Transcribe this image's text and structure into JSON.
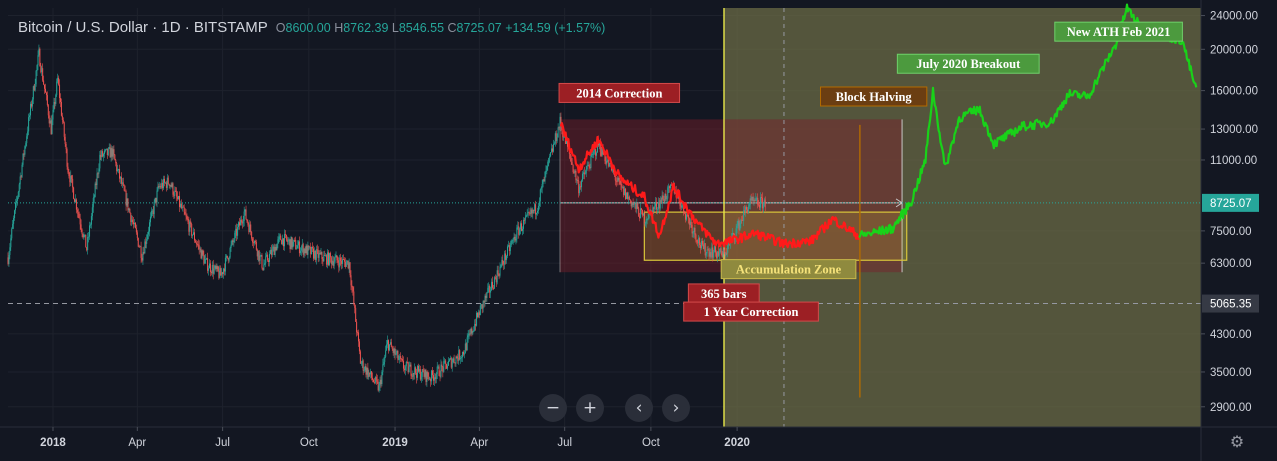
{
  "header": {
    "symbol": "Bitcoin / U.S. Dollar · 1D · BITSTAMP",
    "open_label": "O",
    "open": "8600.00",
    "high_label": "H",
    "high": "8762.39",
    "low_label": "L",
    "low": "8546.55",
    "close_label": "C",
    "close": "8725.07",
    "change": "+134.59 (+1.57%)"
  },
  "controls": {
    "zoom_out": "−",
    "zoom_in": "+",
    "scroll_left": "‹",
    "scroll_right": "›",
    "settings_icon": "gear-icon"
  },
  "colors": {
    "background": "#131722",
    "up": "#26a69a",
    "down": "#ef5350",
    "fractal_red": "#ff1a1a",
    "fractal_green": "#19d219",
    "halving_line": "#b36b00",
    "current_line": "#e8e84a",
    "accumulation_box": "#d9c63a",
    "future_region": "#6b6b45",
    "last_price_tag": "#26a69a"
  },
  "chart_data": {
    "type": "candlestick",
    "symbol": "BTCUSD",
    "timeframe": "1D",
    "y_scale": "log",
    "ylim": [
      2600,
      25000
    ],
    "xlim": [
      "2017-11-14",
      "2021-05-10"
    ],
    "y_ticks": [
      24000,
      20000,
      16000,
      13000,
      11000,
      7500,
      6300,
      4300,
      3500,
      2900
    ],
    "y_tick_labels": [
      "24000.00",
      "20000.00",
      "16000.00",
      "13000.00",
      "11000.00",
      "7500.00",
      "6300.00",
      "4300.00",
      "3500.00",
      "2900.00"
    ],
    "x_ticks": [
      "2018-01-01",
      "2018-04-01",
      "2018-07-01",
      "2018-10-01",
      "2019-01-01",
      "2019-04-01",
      "2019-07-01",
      "2019-10-01",
      "2020-01-01"
    ],
    "x_tick_labels": [
      "2018",
      "Apr",
      "Jul",
      "Oct",
      "2019",
      "Apr",
      "Jul",
      "Oct",
      "2020"
    ],
    "bold_x_ticks": [
      "2018",
      "2019",
      "2020"
    ],
    "last_price": {
      "value": 8725.07,
      "label": "8725.07"
    },
    "dashed_level": {
      "value": 5065.35,
      "label": "5065.35"
    },
    "price_path": [
      [
        "2017-11-14",
        6500
      ],
      [
        "2017-12-17",
        19500
      ],
      [
        "2017-12-30",
        13000
      ],
      [
        "2018-01-06",
        17000
      ],
      [
        "2018-01-17",
        10500
      ],
      [
        "2018-02-06",
        6800
      ],
      [
        "2018-02-20",
        11200
      ],
      [
        "2018-03-05",
        11500
      ],
      [
        "2018-04-06",
        6600
      ],
      [
        "2018-04-24",
        9500
      ],
      [
        "2018-05-05",
        9800
      ],
      [
        "2018-06-13",
        6300
      ],
      [
        "2018-06-29",
        5900
      ],
      [
        "2018-07-24",
        8300
      ],
      [
        "2018-08-13",
        6200
      ],
      [
        "2018-09-01",
        7200
      ],
      [
        "2018-10-15",
        6500
      ],
      [
        "2018-11-13",
        6300
      ],
      [
        "2018-11-25",
        3700
      ],
      [
        "2018-12-15",
        3200
      ],
      [
        "2018-12-24",
        4100
      ],
      [
        "2019-01-10",
        3600
      ],
      [
        "2019-02-08",
        3400
      ],
      [
        "2019-03-15",
        3900
      ],
      [
        "2019-04-02",
        4900
      ],
      [
        "2019-05-12",
        7500
      ],
      [
        "2019-06-01",
        8500
      ],
      [
        "2019-06-26",
        13500
      ],
      [
        "2019-07-16",
        9500
      ],
      [
        "2019-08-06",
        12000
      ],
      [
        "2019-08-29",
        9500
      ],
      [
        "2019-09-24",
        8000
      ],
      [
        "2019-10-25",
        9500
      ],
      [
        "2019-11-25",
        6800
      ],
      [
        "2019-12-18",
        6600
      ],
      [
        "2020-01-14",
        8700
      ],
      [
        "2020-01-31",
        8725
      ]
    ],
    "fractal_red_path": [
      [
        "2019-06-26",
        13500
      ],
      [
        "2019-07-16",
        10500
      ],
      [
        "2019-08-06",
        12300
      ],
      [
        "2019-08-29",
        10000
      ],
      [
        "2019-09-24",
        9000
      ],
      [
        "2019-10-10",
        7300
      ],
      [
        "2019-10-25",
        9500
      ],
      [
        "2019-11-20",
        7800
      ],
      [
        "2019-12-10",
        7000
      ],
      [
        "2019-12-25",
        7100
      ],
      [
        "2020-01-20",
        7400
      ],
      [
        "2020-02-20",
        7000
      ],
      [
        "2020-03-20",
        7100
      ],
      [
        "2020-04-12",
        8000
      ],
      [
        "2020-05-10",
        7300
      ]
    ],
    "fractal_green_path": [
      [
        "2020-05-10",
        7300
      ],
      [
        "2020-06-15",
        7600
      ],
      [
        "2020-07-05",
        8800
      ],
      [
        "2020-07-20",
        11000
      ],
      [
        "2020-07-28",
        16000
      ],
      [
        "2020-08-10",
        10500
      ],
      [
        "2020-08-25",
        13800
      ],
      [
        "2020-09-15",
        14500
      ],
      [
        "2020-10-01",
        12000
      ],
      [
        "2020-11-01",
        13200
      ],
      [
        "2020-12-01",
        13500
      ],
      [
        "2020-12-20",
        15700
      ],
      [
        "2021-01-10",
        15500
      ],
      [
        "2021-01-25",
        18000
      ],
      [
        "2021-02-08",
        20500
      ],
      [
        "2021-02-20",
        25000
      ],
      [
        "2021-03-10",
        22000
      ],
      [
        "2021-04-01",
        21500
      ],
      [
        "2021-04-20",
        21000
      ],
      [
        "2021-05-05",
        16000
      ]
    ],
    "regions": [
      {
        "name": "future-projection",
        "x0": "2019-12-18",
        "x1": "2021-05-10"
      },
      {
        "name": "correction-range",
        "x0": "2019-06-26",
        "x1": "2020-06-25",
        "y0": 6000,
        "y1": 13700
      },
      {
        "name": "accumulation-zone",
        "x0": "2019-09-24",
        "x1": "2020-06-30",
        "y0": 6400,
        "y1": 8300
      }
    ],
    "vertical_lines": [
      {
        "name": "current-date",
        "x": "2019-12-18",
        "style": "solid"
      },
      {
        "name": "block-halving",
        "x": "2020-05-11",
        "style": "solid"
      },
      {
        "name": "crosshair",
        "x": "2020-02-20",
        "style": "dashed"
      }
    ],
    "annotations": [
      {
        "name": "label-2014-correction",
        "text": "2014 Correction",
        "x": "2019-06-25",
        "y": 15800,
        "kind": "red"
      },
      {
        "name": "label-block-halving",
        "text": "Block Halving",
        "x": "2020-03-30",
        "y": 15500,
        "kind": "brown"
      },
      {
        "name": "label-july-2020-breakout",
        "text": "July 2020 Breakout",
        "x": "2020-06-20",
        "y": 18500,
        "kind": "green"
      },
      {
        "name": "label-new-ath",
        "text": "New ATH Feb 2021",
        "x": "2020-12-05",
        "y": 22000,
        "kind": "green"
      },
      {
        "name": "label-accumulation-zone",
        "text": "Accumulation Zone",
        "x": "2019-12-15",
        "y": 6100,
        "kind": "gold"
      },
      {
        "name": "label-365-bars",
        "text": "365 bars",
        "x": "2019-11-10",
        "y": 5350,
        "kind": "red"
      },
      {
        "name": "label-1-year-correction",
        "text": "1 Year Correction",
        "x": "2019-11-05",
        "y": 4850,
        "kind": "red"
      }
    ]
  }
}
